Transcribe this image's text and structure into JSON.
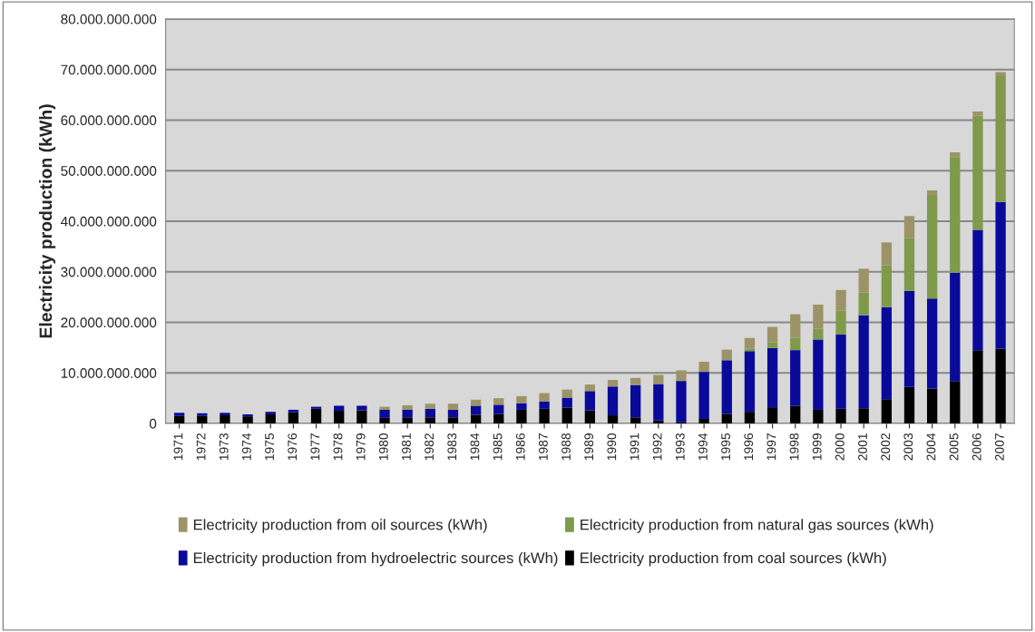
{
  "chart_data": {
    "type": "bar",
    "stacked": true,
    "ylabel": "Electricity production (kWh)",
    "categories": [
      "1971",
      "1972",
      "1973",
      "1974",
      "1975",
      "1976",
      "1977",
      "1978",
      "1979",
      "1980",
      "1981",
      "1982",
      "1983",
      "1984",
      "1985",
      "1986",
      "1987",
      "1988",
      "1989",
      "1990",
      "1991",
      "1992",
      "1993",
      "1994",
      "1995",
      "1996",
      "1997",
      "1998",
      "1999",
      "2000",
      "2001",
      "2002",
      "2003",
      "2004",
      "2005",
      "2006",
      "2007"
    ],
    "series": [
      {
        "name": "Electricity production from coal sources (kWh)",
        "color": "#000000",
        "values": [
          1500000000,
          1500000000,
          1600000000,
          1400000000,
          1800000000,
          2200000000,
          2900000000,
          2500000000,
          2600000000,
          1100000000,
          1200000000,
          1200000000,
          1200000000,
          1700000000,
          1900000000,
          2700000000,
          2900000000,
          3100000000,
          2600000000,
          1600000000,
          1200000000,
          600000000,
          300000000,
          900000000,
          1900000000,
          2300000000,
          3200000000,
          3500000000,
          2700000000,
          2900000000,
          3000000000,
          4800000000,
          7200000000,
          6900000000,
          8400000000,
          14500000000,
          14800000000
        ]
      },
      {
        "name": "Electricity production from hydroelectric sources (kWh)",
        "color": "#0a0a9a",
        "values": [
          600000000,
          500000000,
          500000000,
          400000000,
          500000000,
          500000000,
          400000000,
          1000000000,
          900000000,
          1600000000,
          1500000000,
          1700000000,
          1500000000,
          1800000000,
          1800000000,
          1300000000,
          1400000000,
          2000000000,
          3800000000,
          5700000000,
          6400000000,
          7200000000,
          8100000000,
          9300000000,
          10600000000,
          12000000000,
          11700000000,
          11000000000,
          13900000000,
          14700000000,
          18400000000,
          18200000000,
          19000000000,
          17800000000,
          21400000000,
          23800000000,
          29000000000
        ]
      },
      {
        "name": "Electricity production from natural gas sources (kWh)",
        "color": "#7f9a4a",
        "values": [
          0,
          0,
          0,
          0,
          0,
          0,
          0,
          0,
          0,
          0,
          0,
          0,
          0,
          0,
          0,
          0,
          0,
          0,
          0,
          0,
          0,
          0,
          0,
          0,
          0,
          500000000,
          1100000000,
          2400000000,
          2100000000,
          4700000000,
          4500000000,
          8300000000,
          10500000000,
          20500000000,
          22900000000,
          22600000000,
          24900000000
        ]
      },
      {
        "name": "Electricity production from oil sources (kWh)",
        "color": "#9c9468",
        "values": [
          0,
          0,
          0,
          0,
          0,
          0,
          0,
          0,
          0,
          600000000,
          900000000,
          1000000000,
          1200000000,
          1200000000,
          1300000000,
          1400000000,
          1700000000,
          1600000000,
          1300000000,
          1300000000,
          1400000000,
          1800000000,
          2100000000,
          2000000000,
          2100000000,
          2100000000,
          3100000000,
          4700000000,
          4800000000,
          4100000000,
          4700000000,
          4500000000,
          4300000000,
          900000000,
          900000000,
          800000000,
          800000000
        ]
      }
    ],
    "ylim": [
      0,
      80000000000
    ],
    "yticks": [
      0,
      {
        "value": 10000000000,
        "label": "10.000.000.000"
      },
      {
        "value": 20000000000,
        "label": "20.000.000.000"
      },
      {
        "value": 30000000000,
        "label": "30.000.000.000"
      },
      {
        "value": 40000000000,
        "label": "40.000.000.000"
      },
      {
        "value": 50000000000,
        "label": "50.000.000.000"
      },
      {
        "value": 60000000000,
        "label": "60.000.000.000"
      },
      {
        "value": 70000000000,
        "label": "70.000.000.000"
      },
      {
        "value": 80000000000,
        "label": "80.000.000.000"
      }
    ],
    "grid": "y",
    "legend": "bottom"
  }
}
